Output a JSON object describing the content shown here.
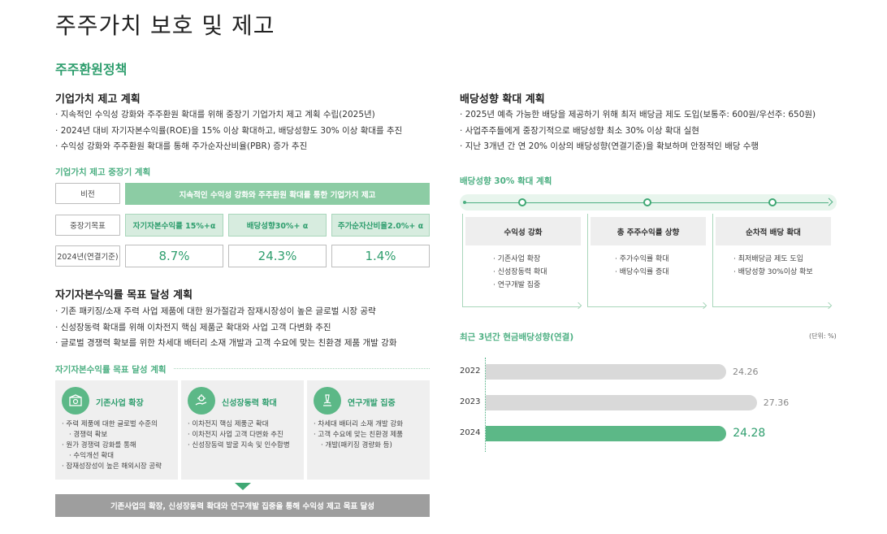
{
  "page_title": "주주가치 보호 및 제고",
  "section_title": "주주환원정책",
  "left": {
    "value_plan": {
      "heading": "기업가치 제고 계획",
      "bullets": [
        "지속적인 수익성 강화와 주주환원 확대를 위해 중장기 기업가치 제고 계획 수립(2025년)",
        "2024년 대비 자기자본수익률(ROE)을 15% 이상 확대하고, 배당성향도 30% 이상 확대를 추진",
        "수익성 강화와 주주환원 확대를 통해 주가순자산비율(PBR) 증가 추진"
      ],
      "midterm_label": "기업가치 제고 중장기 계획",
      "table": {
        "vision_label": "비전",
        "vision_text": "지속적인 수익성 강화와 주주환원 확대를 통한 기업가치 제고",
        "goal_label": "중장기목표",
        "goals": [
          "자기자본수익률 15%+α",
          "배당성향30%+ α",
          "주가순자산비율2.0%+ α"
        ],
        "actual_label": "2024년(연결기준)",
        "actuals": [
          "8.7%",
          "24.3%",
          "1.4%"
        ]
      }
    },
    "roe_plan": {
      "heading": "자기자본수익률 목표 달성 계획",
      "bullets": [
        "기존 패키징/소재 주력 사업 제품에 대한 원가절감과 잠재시장성이 높은 글로벌 시장 공략",
        "신성장동력 확대를 위해 이차전지 핵심 제품군 확대와 사업 고객 다변화 추진",
        "글로벌 경쟁력 확보를 위한 차세대 배터리 소재 개발과 고객 수요에 맞는 친환경 제품 개발 강화"
      ],
      "sub_label": "자기자본수익률 목표 달성 계획",
      "boxes": [
        {
          "title": "기존사업 확장",
          "icon": "package-icon",
          "items": [
            "주력 제품에 대한 글로벌 수준의",
            "경쟁력 확보",
            "원가 경쟁력 강화를 통해",
            "수익개선 확대",
            "잠재성장성이 높은 해외시장 공략"
          ]
        },
        {
          "title": "신성장동력 확대",
          "icon": "growth-hand-icon",
          "items": [
            "이차전지 핵심 제품군 확대",
            "이차전지 사업 고객 다변화 추진",
            "신성장동력 발굴 지속 및 인수합병"
          ]
        },
        {
          "title": "연구개발 집중",
          "icon": "microscope-icon",
          "items": [
            "차세대 배터리 소재 개발 강화",
            "고객 수요에 맞는 친환경 제품",
            "개발(패키징 경량화 등)"
          ]
        }
      ],
      "conclusion": "기존사업의 확장, 신성장동력 확대와 연구개발 집중을 통해 수익성 제고 목표 달성"
    }
  },
  "right": {
    "dividend_plan": {
      "heading": "배당성향 확대 계획",
      "bullets": [
        "2025년 예측 가능한 배당을 제공하기 위해 최저 배당금 제도 도입(보통주: 600원/우선주: 650원)",
        "사업주주들에게 중장기적으로 배당성향 최소 30% 이상 확대 실현",
        "지난 3개년 간 연 20% 이상의 배당성향(연결기준)을 확보하며 안정적인 배당 수행"
      ],
      "sub_label": "배당성향 30% 확대 계획",
      "columns": [
        {
          "title": "수익성 강화",
          "items": [
            "기존사업 확장",
            "신성장동력 확대",
            "연구개발 집중"
          ]
        },
        {
          "title": "총 주주수익률 상향",
          "items": [
            "주가수익률 확대",
            "배당수익률 증대"
          ]
        },
        {
          "title": "순차적 배당 확대",
          "items": [
            "최저배당금 제도 도입",
            "배당성향 30%이상 확보"
          ]
        }
      ]
    },
    "history": {
      "title": "최근 3년간 현금배당성향(연결)",
      "unit": "(단위: %)"
    }
  },
  "chart_data": {
    "type": "bar",
    "orientation": "horizontal",
    "title": "최근 3년간 현금배당성향(연결)",
    "unit": "(단위: %)",
    "categories": [
      "2022",
      "2023",
      "2024"
    ],
    "values": [
      24.26,
      27.36,
      24.28
    ],
    "labels": [
      "24.26",
      "27.36",
      "24.28"
    ],
    "highlight": "2024",
    "colors": {
      "default": "#d9d9d9",
      "highlight": "#5cb887"
    }
  }
}
